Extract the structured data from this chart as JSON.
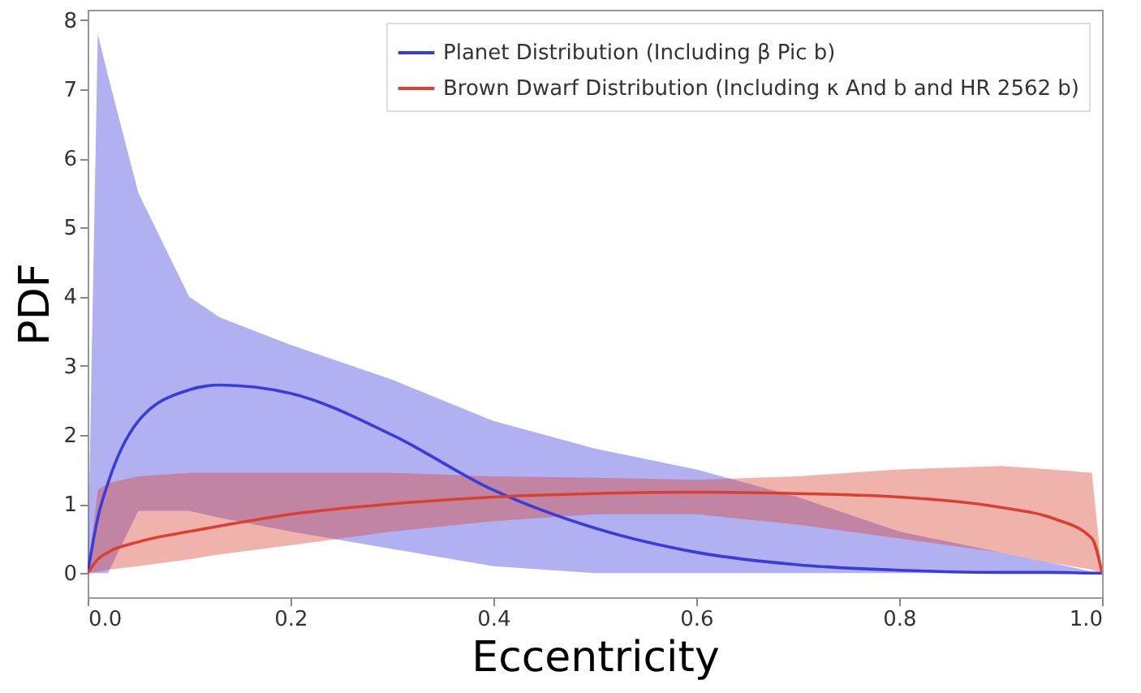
{
  "chart_data": {
    "type": "line",
    "xlabel": "Eccentricity",
    "ylabel": "PDF",
    "x": [
      0,
      0.01,
      0.02,
      0.05,
      0.1,
      0.13,
      0.2,
      0.3,
      0.4,
      0.5,
      0.6,
      0.7,
      0.8,
      0.9,
      0.95,
      0.99,
      1.0
    ],
    "series": [
      {
        "name": "Planet Distribution (Including β Pic b)",
        "color": "#3b3bdc",
        "values": [
          0,
          0.8,
          1.3,
          2.2,
          2.65,
          2.72,
          2.6,
          2.0,
          1.2,
          0.65,
          0.3,
          0.12,
          0.04,
          0.01,
          0.01,
          0,
          0
        ],
        "lower": [
          0,
          0,
          0,
          0.9,
          0.9,
          0.8,
          0.6,
          0.35,
          0.1,
          0,
          0,
          0,
          0,
          0,
          0,
          0,
          0
        ],
        "upper": [
          0,
          7.8,
          7.2,
          5.5,
          4.0,
          3.7,
          3.3,
          2.8,
          2.2,
          1.8,
          1.5,
          1.1,
          0.6,
          0.3,
          0.15,
          0.02,
          0
        ]
      },
      {
        "name": "Brown Dwarf Distribution (Including κ And b and HR 2562 b)",
        "color": "#d9402f",
        "values": [
          0,
          0.2,
          0.3,
          0.45,
          0.6,
          0.68,
          0.85,
          1.0,
          1.1,
          1.15,
          1.17,
          1.15,
          1.1,
          0.95,
          0.8,
          0.5,
          0
        ],
        "lower": [
          0,
          0.02,
          0.05,
          0.1,
          0.2,
          0.27,
          0.4,
          0.6,
          0.75,
          0.85,
          0.85,
          0.7,
          0.5,
          0.3,
          0.15,
          0.05,
          0
        ],
        "upper": [
          0,
          1.2,
          1.3,
          1.4,
          1.45,
          1.45,
          1.45,
          1.45,
          1.4,
          1.38,
          1.35,
          1.4,
          1.5,
          1.55,
          1.5,
          1.45,
          0
        ]
      }
    ],
    "xlim": [
      0,
      1
    ],
    "xticks": [
      {
        "value": 0,
        "label": "0.0"
      },
      {
        "value": 0.2,
        "label": "0.2"
      },
      {
        "value": 0.4,
        "label": "0.4"
      },
      {
        "value": 0.6,
        "label": "0.6"
      },
      {
        "value": 0.8,
        "label": "0.8"
      },
      {
        "value": 1,
        "label": "1.0"
      }
    ],
    "ylim": [
      -0.35,
      8.15
    ],
    "yticks": [
      0,
      1,
      2,
      3,
      4,
      5,
      6,
      7,
      8
    ],
    "grid": false,
    "legend": "top right"
  }
}
